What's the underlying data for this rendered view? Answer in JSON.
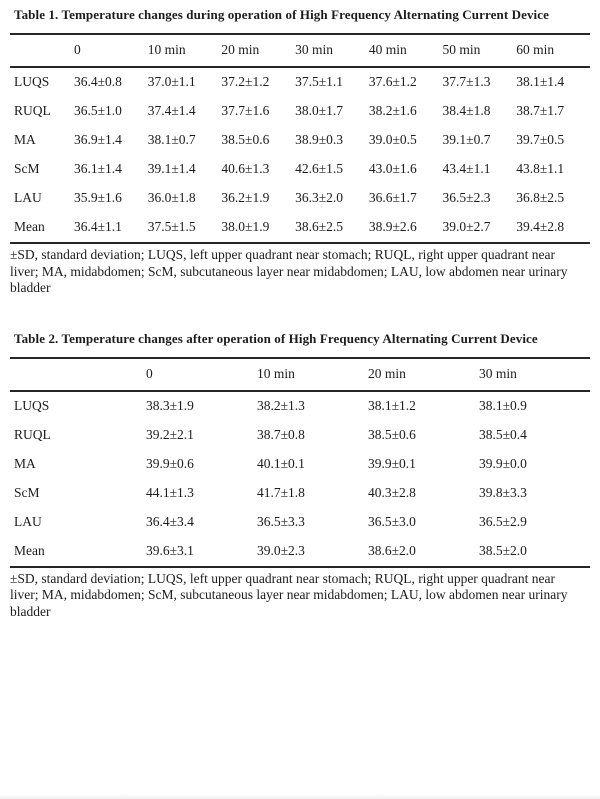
{
  "tables": [
    {
      "title": "Table 1. Temperature changes during operation of High Frequency Alternating Current Device",
      "columns": [
        "",
        "0",
        "10 min",
        "20 min",
        "30 min",
        "40 min",
        "50 min",
        "60 min"
      ],
      "rows": [
        {
          "label": "LUQS",
          "values": [
            "36.4±0.8",
            "37.0±1.1",
            "37.2±1.2",
            "37.5±1.1",
            "37.6±1.2",
            "37.7±1.3",
            "38.1±1.4"
          ]
        },
        {
          "label": "RUQL",
          "values": [
            "36.5±1.0",
            "37.4±1.4",
            "37.7±1.6",
            "38.0±1.7",
            "38.2±1.6",
            "38.4±1.8",
            "38.7±1.7"
          ]
        },
        {
          "label": "MA",
          "values": [
            "36.9±1.4",
            "38.1±0.7",
            "38.5±0.6",
            "38.9±0.3",
            "39.0±0.5",
            "39.1±0.7",
            "39.7±0.5"
          ]
        },
        {
          "label": "ScM",
          "values": [
            "36.1±1.4",
            "39.1±1.4",
            "40.6±1.3",
            "42.6±1.5",
            "43.0±1.6",
            "43.4±1.1",
            "43.8±1.1"
          ]
        },
        {
          "label": "LAU",
          "values": [
            "35.9±1.6",
            "36.0±1.8",
            "36.2±1.9",
            "36.3±2.0",
            "36.6±1.7",
            "36.5±2.3",
            "36.8±2.5"
          ]
        },
        {
          "label": "Mean",
          "values": [
            "36.4±1.1",
            "37.5±1.5",
            "38.0±1.9",
            "38.6±2.5",
            "38.9±2.6",
            "39.0±2.7",
            "39.4±2.8"
          ]
        }
      ],
      "footnote": "±SD, standard deviation; LUQS, left upper quadrant near stomach; RUQL, right upper quadrant near liver; MA, midabdomen; ScM, subcutaneous layer near midabdomen; LAU, low abdomen near urinary bladder"
    },
    {
      "title": "Table 2. Temperature changes after operation of High Frequency Alternating Current Device",
      "columns": [
        "",
        "0",
        "10 min",
        "20 min",
        "30 min"
      ],
      "rows": [
        {
          "label": "LUQS",
          "values": [
            "38.3±1.9",
            "38.2±1.3",
            "38.1±1.2",
            "38.1±0.9"
          ]
        },
        {
          "label": "RUQL",
          "values": [
            "39.2±2.1",
            "38.7±0.8",
            "38.5±0.6",
            "38.5±0.4"
          ]
        },
        {
          "label": "MA",
          "values": [
            "39.9±0.6",
            "40.1±0.1",
            "39.9±0.1",
            "39.9±0.0"
          ]
        },
        {
          "label": "ScM",
          "values": [
            "44.1±1.3",
            "41.7±1.8",
            "40.3±2.8",
            "39.8±3.3"
          ]
        },
        {
          "label": "LAU",
          "values": [
            "36.4±3.4",
            "36.5±3.3",
            "36.5±3.0",
            "36.5±2.9"
          ]
        },
        {
          "label": "Mean",
          "values": [
            "39.6±3.1",
            "39.0±2.3",
            "38.6±2.0",
            "38.5±2.0"
          ]
        }
      ],
      "footnote": "±SD, standard deviation; LUQS, left upper quadrant near stomach; RUQL, right upper quadrant near liver; MA, midabdomen; ScM, subcutaneous layer near midabdomen; LAU, low abdomen near urinary bladder"
    }
  ]
}
